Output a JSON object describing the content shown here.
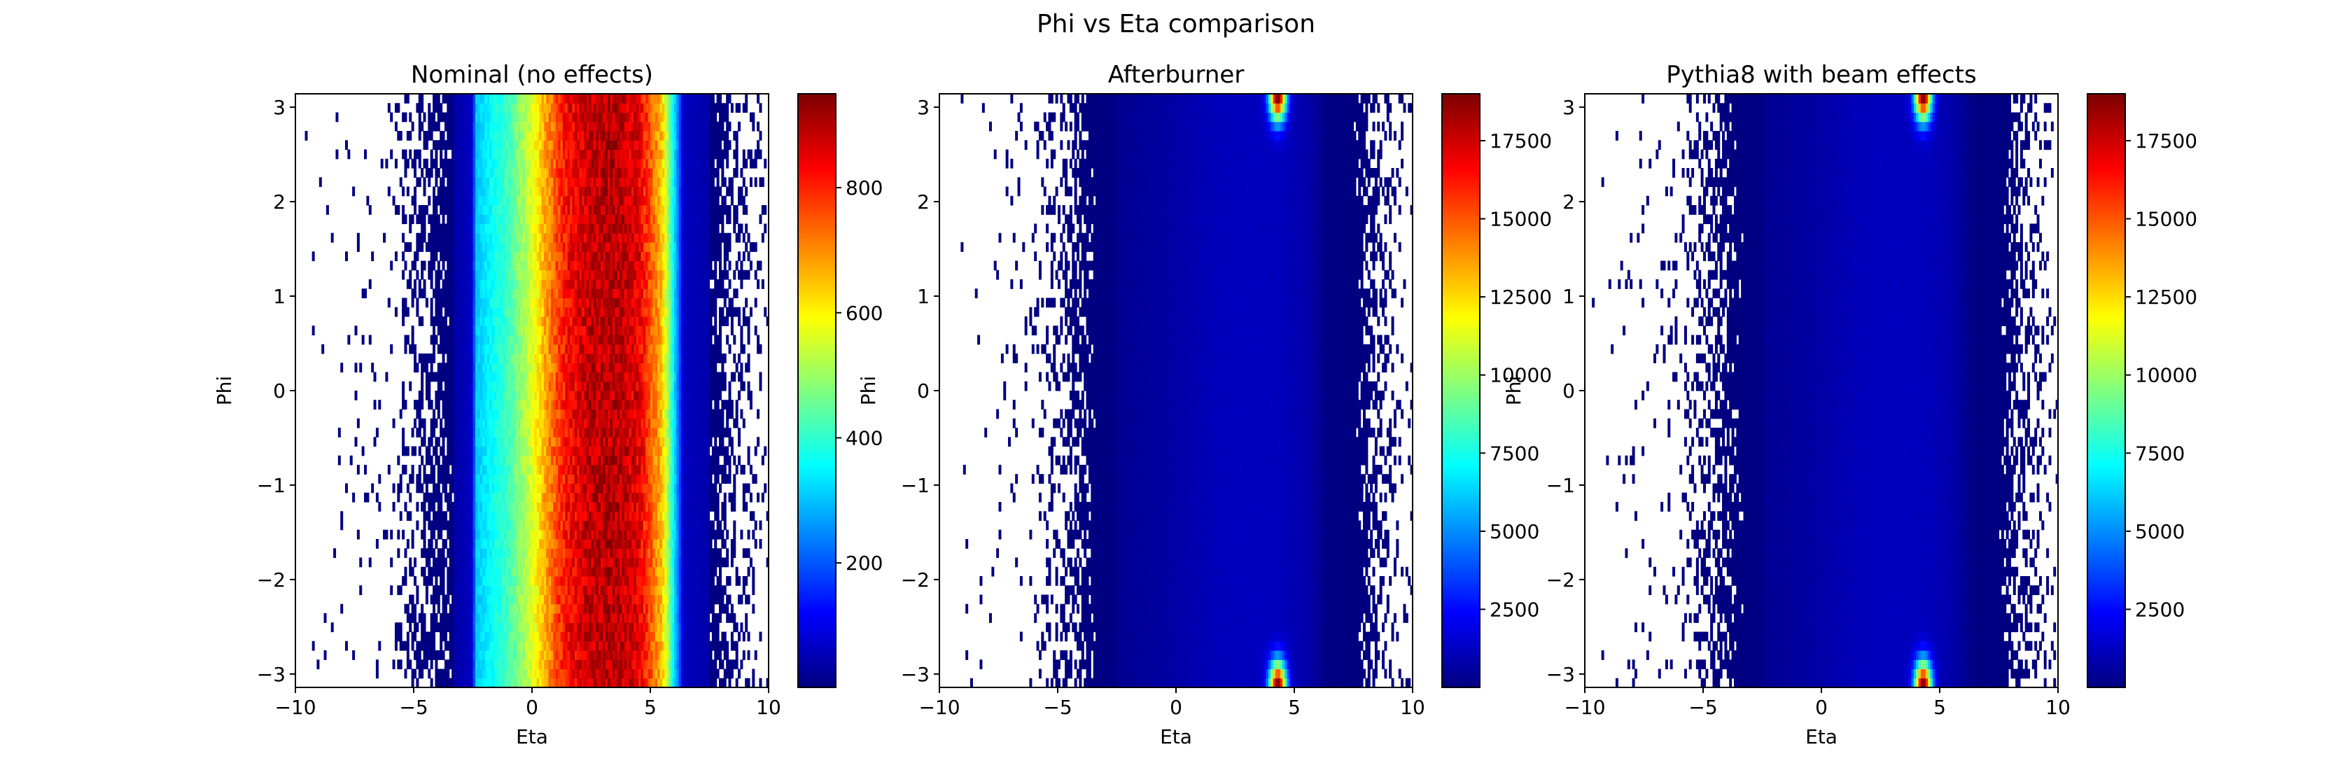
{
  "figure_title": "Phi vs Eta comparison",
  "chart_data": [
    {
      "type": "heatmap",
      "title": "Nominal (no effects)",
      "xlabel": "Eta",
      "ylabel": "Phi",
      "xlim": [
        -10,
        10
      ],
      "ylim": [
        -3.1416,
        3.1416
      ],
      "xticks": [
        -10,
        -5,
        0,
        5,
        10
      ],
      "xtick_labels": [
        "−10",
        "−5",
        "0",
        "5",
        "10"
      ],
      "yticks": [
        -3,
        -2,
        -1,
        0,
        1,
        2,
        3
      ],
      "ytick_labels": [
        "−3",
        "−2",
        "−1",
        "0",
        "1",
        "2",
        "3"
      ],
      "colormap": "jet",
      "colorbar": {
        "range": [
          1,
          950
        ],
        "ticks": [
          200,
          400,
          600,
          800
        ],
        "tick_labels": [
          "200",
          "400",
          "600",
          "800"
        ]
      },
      "eta_profile": [
        {
          "eta": -10.0,
          "counts": 0
        },
        {
          "eta": -8.0,
          "counts": 1
        },
        {
          "eta": -6.0,
          "counts": 3
        },
        {
          "eta": -4.5,
          "counts": 20
        },
        {
          "eta": -3.0,
          "counts": 45
        },
        {
          "eta": -2.5,
          "counts": 70
        },
        {
          "eta": -2.4,
          "counts": 300
        },
        {
          "eta": -1.0,
          "counts": 420
        },
        {
          "eta": 0.0,
          "counts": 560
        },
        {
          "eta": 0.8,
          "counts": 720
        },
        {
          "eta": 1.5,
          "counts": 830
        },
        {
          "eta": 2.5,
          "counts": 890
        },
        {
          "eta": 3.5,
          "counts": 900
        },
        {
          "eta": 4.5,
          "counts": 860
        },
        {
          "eta": 5.5,
          "counts": 650
        },
        {
          "eta": 6.2,
          "counts": 220
        },
        {
          "eta": 6.4,
          "counts": 60
        },
        {
          "eta": 7.5,
          "counts": 40
        },
        {
          "eta": 8.5,
          "counts": 15
        },
        {
          "eta": 10.0,
          "counts": 2
        }
      ],
      "hotspots": []
    },
    {
      "type": "heatmap",
      "title": "Afterburner",
      "xlabel": "Eta",
      "ylabel": "Phi",
      "xlim": [
        -10,
        10
      ],
      "ylim": [
        -3.1416,
        3.1416
      ],
      "xticks": [
        -10,
        -5,
        0,
        5,
        10
      ],
      "xtick_labels": [
        "−10",
        "−5",
        "0",
        "5",
        "10"
      ],
      "yticks": [
        -3,
        -2,
        -1,
        0,
        1,
        2,
        3
      ],
      "ytick_labels": [
        "−3",
        "−2",
        "−1",
        "0",
        "1",
        "2",
        "3"
      ],
      "colormap": "jet",
      "colorbar": {
        "range": [
          1,
          19000
        ],
        "ticks": [
          2500,
          5000,
          7500,
          10000,
          12500,
          15000,
          17500
        ],
        "tick_labels": [
          "2500",
          "5000",
          "7500",
          "10000",
          "12500",
          "15000",
          "17500"
        ]
      },
      "eta_profile": [
        {
          "eta": -10.0,
          "counts": 0
        },
        {
          "eta": -8.0,
          "counts": 1
        },
        {
          "eta": -6.0,
          "counts": 3
        },
        {
          "eta": -4.5,
          "counts": 20
        },
        {
          "eta": -3.0,
          "counts": 45
        },
        {
          "eta": -2.5,
          "counts": 70
        },
        {
          "eta": -2.4,
          "counts": 300
        },
        {
          "eta": -1.0,
          "counts": 420
        },
        {
          "eta": 0.0,
          "counts": 560
        },
        {
          "eta": 0.8,
          "counts": 720
        },
        {
          "eta": 1.5,
          "counts": 830
        },
        {
          "eta": 2.5,
          "counts": 890
        },
        {
          "eta": 3.5,
          "counts": 900
        },
        {
          "eta": 4.5,
          "counts": 860
        },
        {
          "eta": 5.5,
          "counts": 650
        },
        {
          "eta": 6.2,
          "counts": 220
        },
        {
          "eta": 6.4,
          "counts": 60
        },
        {
          "eta": 7.5,
          "counts": 40
        },
        {
          "eta": 8.5,
          "counts": 15
        },
        {
          "eta": 10.0,
          "counts": 2
        }
      ],
      "hotspots": [
        {
          "eta": 4.3,
          "phi": 3.1416,
          "counts": 18500
        },
        {
          "eta": 4.3,
          "phi": -3.1416,
          "counts": 18500
        }
      ]
    },
    {
      "type": "heatmap",
      "title": "Pythia8 with beam effects",
      "xlabel": "Eta",
      "ylabel": "Phi",
      "xlim": [
        -10,
        10
      ],
      "ylim": [
        -3.1416,
        3.1416
      ],
      "xticks": [
        -10,
        -5,
        0,
        5,
        10
      ],
      "xtick_labels": [
        "−10",
        "−5",
        "0",
        "5",
        "10"
      ],
      "yticks": [
        -3,
        -2,
        -1,
        0,
        1,
        2,
        3
      ],
      "ytick_labels": [
        "−3",
        "−2",
        "−1",
        "0",
        "1",
        "2",
        "3"
      ],
      "colormap": "jet",
      "colorbar": {
        "range": [
          1,
          19000
        ],
        "ticks": [
          2500,
          5000,
          7500,
          10000,
          12500,
          15000,
          17500
        ],
        "tick_labels": [
          "2500",
          "5000",
          "7500",
          "10000",
          "12500",
          "15000",
          "17500"
        ]
      },
      "eta_profile": [
        {
          "eta": -10.0,
          "counts": 0
        },
        {
          "eta": -8.0,
          "counts": 1
        },
        {
          "eta": -6.0,
          "counts": 3
        },
        {
          "eta": -4.5,
          "counts": 20
        },
        {
          "eta": -3.0,
          "counts": 45
        },
        {
          "eta": -2.5,
          "counts": 70
        },
        {
          "eta": -2.4,
          "counts": 300
        },
        {
          "eta": -1.0,
          "counts": 420
        },
        {
          "eta": 0.0,
          "counts": 560
        },
        {
          "eta": 0.8,
          "counts": 720
        },
        {
          "eta": 1.5,
          "counts": 830
        },
        {
          "eta": 2.5,
          "counts": 890
        },
        {
          "eta": 3.5,
          "counts": 900
        },
        {
          "eta": 4.5,
          "counts": 860
        },
        {
          "eta": 5.5,
          "counts": 650
        },
        {
          "eta": 6.2,
          "counts": 220
        },
        {
          "eta": 6.4,
          "counts": 60
        },
        {
          "eta": 7.5,
          "counts": 40
        },
        {
          "eta": 8.5,
          "counts": 15
        },
        {
          "eta": 10.0,
          "counts": 2
        }
      ],
      "hotspots": [
        {
          "eta": 4.3,
          "phi": 3.1416,
          "counts": 18500
        },
        {
          "eta": 4.3,
          "phi": -3.1416,
          "counts": 18500
        }
      ]
    }
  ]
}
